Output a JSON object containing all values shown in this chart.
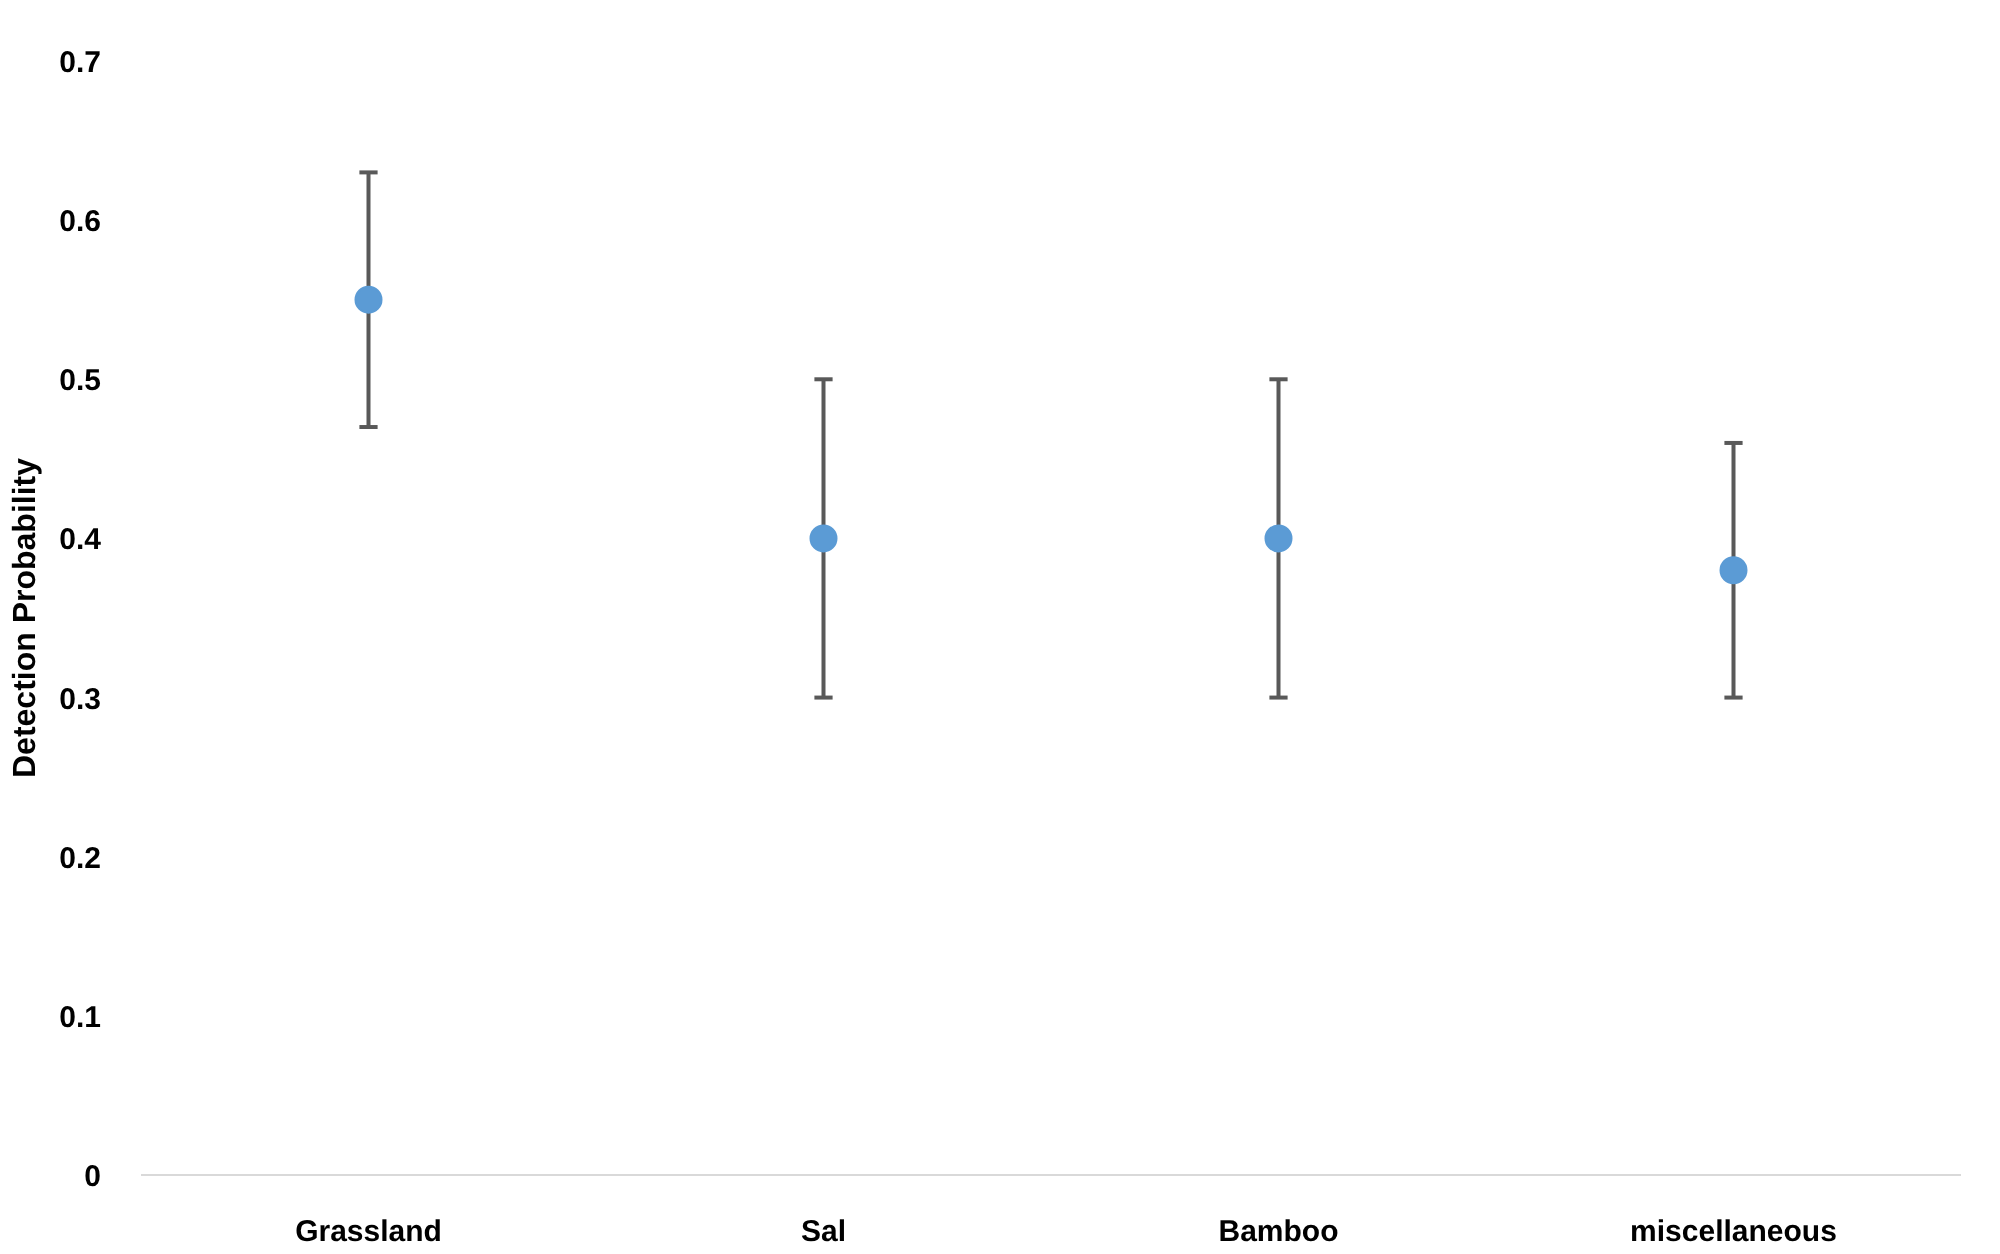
{
  "chart_data": {
    "type": "scatter",
    "ylabel": "Detection Probability",
    "categories": [
      "Grassland",
      "Sal",
      "Bamboo",
      "miscellaneous"
    ],
    "values": [
      0.55,
      0.4,
      0.4,
      0.38
    ],
    "errors": [
      [
        0.47,
        0.63
      ],
      [
        0.3,
        0.5
      ],
      [
        0.3,
        0.5
      ],
      [
        0.3,
        0.46
      ]
    ],
    "color": "#5b9bd5",
    "marker": "circle",
    "ylim": [
      0,
      0.7
    ],
    "yticks": [
      {
        "value": 0,
        "label": "0"
      },
      0.1,
      0.2,
      0.3,
      0.4,
      0.5,
      0.6,
      0.7
    ],
    "grid": false
  }
}
